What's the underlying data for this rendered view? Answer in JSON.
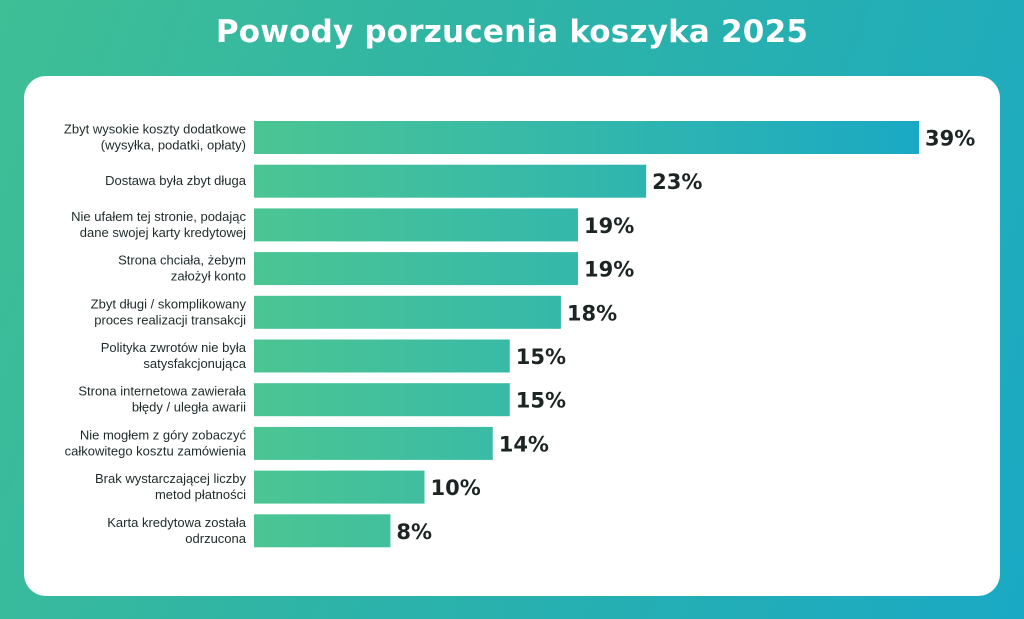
{
  "title": "Powody porzucenia koszyka 2025",
  "colors": {
    "bar_start": "#4cc593",
    "bar_end": "#1aa9c4",
    "background_start": "#3fbf95",
    "background_end": "#1aa9c4"
  },
  "chart_data": {
    "type": "bar",
    "orientation": "horizontal",
    "title": "Powody porzucenia koszyka 2025",
    "xlabel": "",
    "ylabel": "",
    "xlim": [
      0,
      39
    ],
    "grid": false,
    "legend": "none",
    "unit": "%",
    "categories": [
      [
        "Zbyt wysokie koszty dodatkowe",
        "(wysyłka, podatki, opłaty)"
      ],
      [
        "Dostawa była zbyt długa"
      ],
      [
        "Nie ufałem tej stronie, podając",
        "dane swojej karty kredytowej"
      ],
      [
        "Strona chciała, żebym",
        "założył konto"
      ],
      [
        "Zbyt długi / skomplikowany",
        "proces realizacji transakcji"
      ],
      [
        "Polityka zwrotów nie była",
        "satysfakcjonująca"
      ],
      [
        "Strona internetowa zawierała",
        "błędy / uległa awarii"
      ],
      [
        "Nie mogłem z góry zobaczyć",
        "całkowitego kosztu zamówienia"
      ],
      [
        "Brak wystarczającej liczby",
        "metod płatności"
      ],
      [
        "Karta kredytowa została",
        "odrzucona"
      ]
    ],
    "values": [
      39,
      23,
      19,
      19,
      18,
      15,
      15,
      14,
      10,
      8
    ],
    "value_labels": [
      "39%",
      "23%",
      "19%",
      "19%",
      "18%",
      "15%",
      "15%",
      "14%",
      "10%",
      "8%"
    ]
  }
}
